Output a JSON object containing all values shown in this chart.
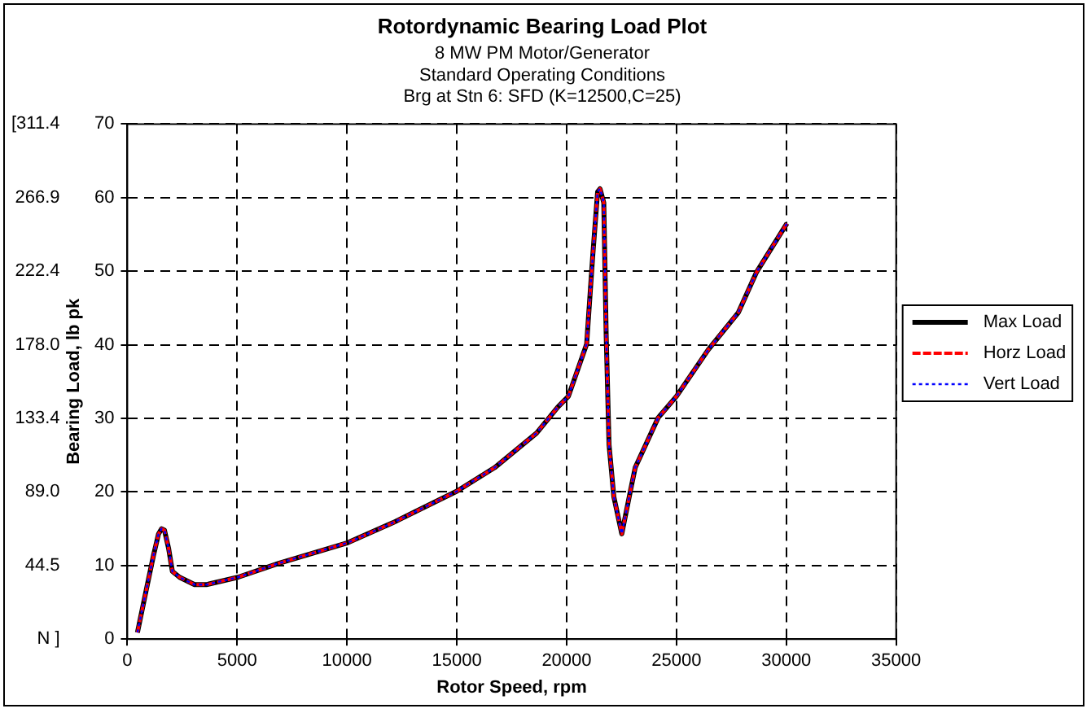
{
  "chart_data": {
    "type": "line",
    "title": "Rotordynamic Bearing Load Plot",
    "subtitle": "8 MW PM Motor/Generator\nStandard Operating Conditions\nBrg at Stn 6: SFD (K=12500,C=25)",
    "xlabel": "Rotor Speed, rpm",
    "ylabel": "Bearing Load, lb pk",
    "x": [
      460,
      870,
      1200,
      1420,
      1560,
      1690,
      1880,
      2050,
      2380,
      3060,
      3600,
      5030,
      6890,
      10030,
      12080,
      15000,
      16720,
      18630,
      19590,
      20080,
      20910,
      21190,
      21410,
      21520,
      21690,
      21800,
      21930,
      22150,
      22510,
      22900,
      23120,
      24170,
      25000,
      26440,
      27820,
      28650,
      30030
    ],
    "series": [
      {
        "name": "Max Load",
        "color": "#000000",
        "line_style": "solid",
        "values": [
          0.9,
          6.8,
          11.5,
          14.3,
          15.0,
          14.8,
          12.3,
          9.2,
          8.4,
          7.4,
          7.4,
          8.4,
          10.3,
          13.1,
          15.8,
          20.1,
          23.3,
          28.0,
          31.5,
          33.0,
          40.1,
          52.2,
          60.8,
          61.2,
          59.3,
          41.3,
          26.4,
          19.3,
          14.3,
          20.1,
          23.3,
          30.1,
          33.0,
          39.3,
          44.4,
          49.9,
          56.5
        ]
      },
      {
        "name": "Horz Load",
        "color": "#ff0000",
        "line_style": "dashed",
        "values": [
          0.9,
          6.8,
          11.5,
          14.3,
          15.0,
          14.8,
          12.3,
          9.2,
          8.4,
          7.4,
          7.4,
          8.4,
          10.3,
          13.1,
          15.8,
          20.1,
          23.3,
          28.0,
          31.5,
          33.0,
          40.1,
          52.2,
          60.8,
          61.2,
          59.3,
          41.3,
          26.4,
          19.3,
          14.3,
          20.1,
          23.3,
          30.1,
          33.0,
          39.3,
          44.4,
          49.9,
          56.5
        ]
      },
      {
        "name": "Vert Load",
        "color": "#0000ff",
        "line_style": "dotted",
        "values": [
          0.9,
          6.8,
          11.5,
          14.3,
          15.0,
          14.8,
          12.3,
          9.2,
          8.4,
          7.4,
          7.4,
          8.4,
          10.3,
          13.1,
          15.8,
          20.1,
          23.3,
          28.0,
          31.5,
          33.0,
          40.1,
          52.2,
          60.8,
          61.2,
          59.3,
          41.3,
          26.4,
          19.3,
          14.3,
          20.1,
          23.3,
          30.1,
          33.0,
          39.3,
          44.4,
          49.9,
          56.5
        ]
      }
    ],
    "xlim": [
      0,
      35000
    ],
    "xticks": [
      0,
      5000,
      10000,
      15000,
      20000,
      25000,
      30000,
      35000
    ],
    "ylim": [
      0,
      70
    ],
    "yticks": [
      0,
      10,
      20,
      30,
      40,
      50,
      60,
      70
    ],
    "y2lim": [
      0,
      311.4
    ],
    "y2ticks": [
      {
        "value": 0,
        "label": "N ]"
      },
      {
        "value": 44.5,
        "label": "44.5"
      },
      {
        "value": 89.0,
        "label": "89.0"
      },
      {
        "value": 133.4,
        "label": "133.4"
      },
      {
        "value": 178.0,
        "label": "178.0"
      },
      {
        "value": 222.4,
        "label": "222.4"
      },
      {
        "value": 266.9,
        "label": "266.9"
      },
      {
        "value": 311.4,
        "label": "[311.4"
      }
    ],
    "grid": true,
    "legend": "right",
    "marker": "none"
  }
}
